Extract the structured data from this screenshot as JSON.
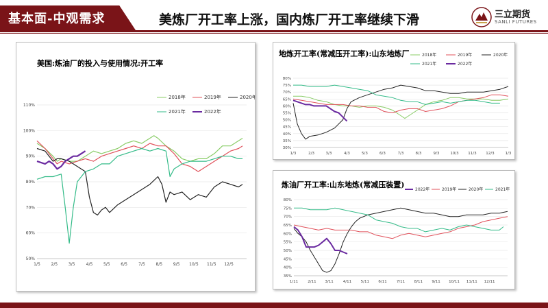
{
  "header": {
    "section": "基本面-中观需求",
    "headline": "美炼厂开工率上涨，国内炼厂开工率继续下滑",
    "logo_cn": "三立期货",
    "logo_en": "SANLI FUTURES"
  },
  "colors": {
    "brand": "#7a1418",
    "y2018": "#88cc66",
    "y2019": "#e0505a",
    "y2020": "#222222",
    "y2021": "#33bb88",
    "y2022": "#6a2aa0"
  },
  "chart_data": [
    {
      "type": "line",
      "title": "美国:炼油厂的投入与使用情况:开工率",
      "xlim": [
        0,
        52
      ],
      "ylim": [
        50,
        110
      ],
      "y_ticks": [
        50,
        60,
        70,
        80,
        90,
        100,
        110
      ],
      "y_tick_labels": [
        "50%",
        "60%",
        "70%",
        "80%",
        "90%",
        "100%",
        "110%"
      ],
      "x_ticks": [
        0,
        4.3,
        8.6,
        13,
        17.3,
        21.6,
        26,
        30.3,
        34.6,
        38.9,
        43.3,
        47.6
      ],
      "x_tick_labels": [
        "1/5",
        "2/5",
        "3/5",
        "4/5",
        "5/5",
        "6/5",
        "7/5",
        "8/5",
        "9/5",
        "10/5",
        "11/5",
        "12/5"
      ],
      "legend_position": "top-right",
      "series": [
        {
          "name": "2018年",
          "color": "#88cc66",
          "x": [
            0,
            2,
            4,
            5,
            6,
            8,
            10,
            12,
            14,
            16,
            18,
            20,
            22,
            24,
            26,
            28,
            29,
            30,
            32,
            34,
            36,
            38,
            40,
            42,
            44,
            46,
            48,
            50,
            51
          ],
          "values": [
            95,
            93,
            90,
            88,
            89,
            88,
            88,
            90,
            92,
            91,
            92,
            93,
            95,
            96,
            95,
            97,
            98,
            97,
            94,
            92,
            89,
            88,
            89,
            89,
            91,
            94,
            94,
            96,
            97
          ]
        },
        {
          "name": "2019年",
          "color": "#e0505a",
          "x": [
            0,
            2,
            4,
            5,
            6,
            8,
            10,
            12,
            14,
            16,
            18,
            20,
            22,
            24,
            26,
            28,
            30,
            32,
            34,
            36,
            38,
            40,
            42,
            44,
            46,
            48,
            50,
            51
          ],
          "values": [
            96,
            93,
            89,
            87,
            88,
            87,
            88,
            89,
            88,
            90,
            91,
            92,
            93,
            94,
            93,
            95,
            94,
            94,
            91,
            87,
            86,
            84,
            86,
            88,
            90,
            92,
            93,
            94
          ]
        },
        {
          "name": "2020年",
          "color": "#222222",
          "x": [
            0,
            2,
            4,
            5,
            6,
            8,
            10,
            12,
            13,
            14,
            15,
            16,
            17,
            18,
            20,
            22,
            24,
            26,
            28,
            30,
            31,
            32,
            33,
            34,
            36,
            38,
            40,
            42,
            44,
            46,
            48,
            50,
            51
          ],
          "values": [
            93,
            92,
            88,
            89,
            89,
            88,
            86,
            84,
            74,
            68,
            67,
            69,
            70,
            68,
            71,
            73,
            75,
            77,
            79,
            82,
            79,
            72,
            76,
            75,
            76,
            73,
            75,
            74,
            78,
            80,
            79,
            78,
            79
          ]
        },
        {
          "name": "2021年",
          "color": "#33bb88",
          "x": [
            0,
            2,
            4,
            6,
            7,
            8,
            9,
            10,
            12,
            14,
            16,
            18,
            20,
            22,
            24,
            26,
            28,
            30,
            32,
            33,
            34,
            36,
            38,
            40,
            42,
            44,
            46,
            48,
            50,
            51
          ],
          "values": [
            81,
            82,
            82,
            83,
            70,
            56,
            70,
            80,
            84,
            85,
            87,
            87,
            90,
            91,
            92,
            93,
            92,
            93,
            92,
            82,
            85,
            87,
            88,
            88,
            88,
            89,
            90,
            90,
            89,
            89
          ]
        },
        {
          "name": "2022年",
          "color": "#6a2aa0",
          "x": [
            0,
            2,
            3,
            4,
            5,
            6,
            7,
            8,
            9,
            10,
            11,
            12
          ],
          "values": [
            88,
            87,
            88,
            87,
            85,
            86,
            88,
            89,
            90,
            90,
            91,
            92
          ]
        }
      ]
    },
    {
      "type": "line",
      "title": "地炼开工率(常减压开工率):山东地炼厂",
      "xlim": [
        0,
        52
      ],
      "ylim": [
        30,
        80
      ],
      "y_ticks": [
        30,
        35,
        40,
        45,
        50,
        55,
        60,
        65,
        70,
        75,
        80
      ],
      "y_tick_labels": [
        "30%",
        "35%",
        "40%",
        "45%",
        "50%",
        "55%",
        "60%",
        "65%",
        "70%",
        "75%",
        "80%"
      ],
      "x_ticks": [
        0,
        4.4,
        8.6,
        13,
        17.3,
        21.6,
        26,
        30.3,
        34.6,
        39,
        43.3,
        47.6,
        52
      ],
      "x_tick_labels": [
        "1/3",
        "2/3",
        "3/3",
        "4/3",
        "5/3",
        "6/3",
        "7/3",
        "8/3",
        "9/3",
        "10/3",
        "11/3",
        "12/3",
        "1/3"
      ],
      "legend_position": "top",
      "series": [
        {
          "name": "2018年",
          "color": "#88cc66",
          "x": [
            0,
            2,
            4,
            6,
            8,
            10,
            12,
            14,
            16,
            18,
            20,
            22,
            24,
            26,
            27,
            28,
            30,
            32,
            34,
            36,
            38,
            40,
            42,
            44,
            46,
            48,
            50,
            52
          ],
          "values": [
            67,
            67,
            66,
            64,
            63,
            61,
            60,
            60,
            59,
            60,
            60,
            59,
            57,
            53,
            51,
            53,
            57,
            61,
            63,
            64,
            66,
            66,
            65,
            65,
            65,
            64,
            64,
            65
          ]
        },
        {
          "name": "2019年",
          "color": "#e0505a",
          "x": [
            0,
            2,
            4,
            6,
            8,
            10,
            12,
            14,
            16,
            18,
            20,
            22,
            24,
            26,
            28,
            30,
            32,
            34,
            36,
            38,
            40,
            42,
            44,
            46,
            48,
            50,
            52
          ],
          "values": [
            65,
            64,
            63,
            62,
            61,
            61,
            61,
            60,
            60,
            59,
            59,
            56,
            55,
            57,
            58,
            58,
            56,
            57,
            58,
            60,
            63,
            64,
            65,
            66,
            68,
            68,
            67
          ]
        },
        {
          "name": "2020年",
          "color": "#222222",
          "x": [
            0,
            1,
            2,
            3,
            4,
            6,
            8,
            10,
            12,
            13,
            14,
            16,
            18,
            20,
            22,
            24,
            26,
            28,
            30,
            32,
            34,
            36,
            38,
            40,
            42,
            44,
            46,
            48,
            50,
            52
          ],
          "values": [
            62,
            47,
            40,
            36,
            38,
            39,
            41,
            44,
            50,
            58,
            63,
            66,
            68,
            70,
            72,
            73,
            75,
            74,
            73,
            71,
            71,
            70,
            69,
            69,
            70,
            70,
            70,
            71,
            72,
            74
          ]
        },
        {
          "name": "2021年",
          "color": "#33bb88",
          "x": [
            0,
            2,
            4,
            6,
            8,
            10,
            12,
            14,
            16,
            18,
            20,
            22,
            24,
            26,
            28,
            30,
            32,
            34,
            36,
            38,
            40,
            42,
            44,
            46,
            48,
            50
          ],
          "values": [
            75,
            75,
            74,
            74,
            74,
            75,
            74,
            73,
            72,
            71,
            68,
            67,
            66,
            64,
            63,
            63,
            61,
            62,
            63,
            62,
            63,
            64,
            64,
            63,
            62,
            62
          ]
        },
        {
          "name": "2022年",
          "color": "#6a2aa0",
          "x": [
            0,
            1,
            2,
            3,
            4,
            5,
            6,
            7,
            8,
            9,
            10,
            11,
            12,
            13
          ],
          "values": [
            64,
            63,
            62,
            61,
            61,
            60,
            60,
            60,
            60,
            58,
            56,
            55,
            52,
            49
          ]
        }
      ]
    },
    {
      "type": "line",
      "title": "炼油厂开工率:山东地炼(常减压装置)",
      "xlim": [
        0,
        52
      ],
      "ylim": [
        35,
        80
      ],
      "y_ticks": [
        35,
        40,
        45,
        50,
        55,
        60,
        65,
        70,
        75,
        80
      ],
      "y_tick_labels": [
        "35%",
        "40%",
        "45%",
        "50%",
        "55%",
        "60%",
        "65%",
        "70%",
        "75%",
        "80%"
      ],
      "x_ticks": [
        0,
        4.4,
        8.6,
        13,
        17.3,
        21.6,
        26,
        30.3,
        34.6,
        39,
        43.3,
        47.6
      ],
      "x_tick_labels": [
        "1/11",
        "2/11",
        "3/11",
        "4/11",
        "5/11",
        "6/11",
        "7/11",
        "8/11",
        "9/11",
        "10/11",
        "11/11",
        "12/11"
      ],
      "legend_position": "top",
      "series": [
        {
          "name": "2022年",
          "color": "#6a2aa0",
          "x": [
            0,
            1,
            2,
            3,
            4,
            5,
            6,
            7,
            8,
            9,
            10,
            11,
            12,
            13
          ],
          "values": [
            64,
            62,
            58,
            52,
            52,
            52,
            53,
            55,
            57,
            54,
            50,
            50,
            49,
            48
          ]
        },
        {
          "name": "2019年",
          "color": "#e0505a",
          "x": [
            0,
            2,
            4,
            6,
            8,
            10,
            12,
            14,
            16,
            18,
            20,
            22,
            24,
            26,
            28,
            30,
            32,
            34,
            36,
            38,
            40,
            42,
            44,
            46,
            48,
            50,
            52
          ],
          "values": [
            65,
            64,
            63,
            62,
            63,
            62,
            62,
            62,
            61,
            61,
            59,
            58,
            57,
            59,
            60,
            59,
            58,
            59,
            60,
            61,
            63,
            64,
            65,
            67,
            68,
            69,
            70
          ]
        },
        {
          "name": "2020年",
          "color": "#222222",
          "x": [
            0,
            1,
            2,
            3,
            4,
            5,
            6,
            7,
            8,
            9,
            10,
            11,
            12,
            13,
            14,
            15,
            16,
            18,
            20,
            22,
            24,
            26,
            28,
            30,
            32,
            34,
            36,
            38,
            40,
            42,
            44,
            46,
            48,
            50,
            52
          ],
          "values": [
            63,
            60,
            58,
            55,
            50,
            46,
            42,
            38,
            37,
            38,
            42,
            48,
            55,
            60,
            64,
            67,
            69,
            71,
            72,
            73,
            74,
            75,
            74,
            73,
            72,
            72,
            71,
            70,
            70,
            71,
            71,
            71,
            72,
            72,
            73
          ]
        },
        {
          "name": "2021年",
          "color": "#33bb88",
          "x": [
            0,
            2,
            4,
            6,
            8,
            10,
            12,
            14,
            16,
            18,
            20,
            22,
            24,
            26,
            28,
            30,
            32,
            34,
            36,
            38,
            40,
            42,
            44,
            46,
            48,
            50,
            51
          ],
          "values": [
            75,
            75,
            74,
            74,
            74,
            75,
            74,
            73,
            72,
            71,
            68,
            67,
            66,
            64,
            63,
            63,
            61,
            62,
            63,
            62,
            64,
            65,
            64,
            63,
            62,
            62,
            64
          ]
        }
      ]
    }
  ]
}
